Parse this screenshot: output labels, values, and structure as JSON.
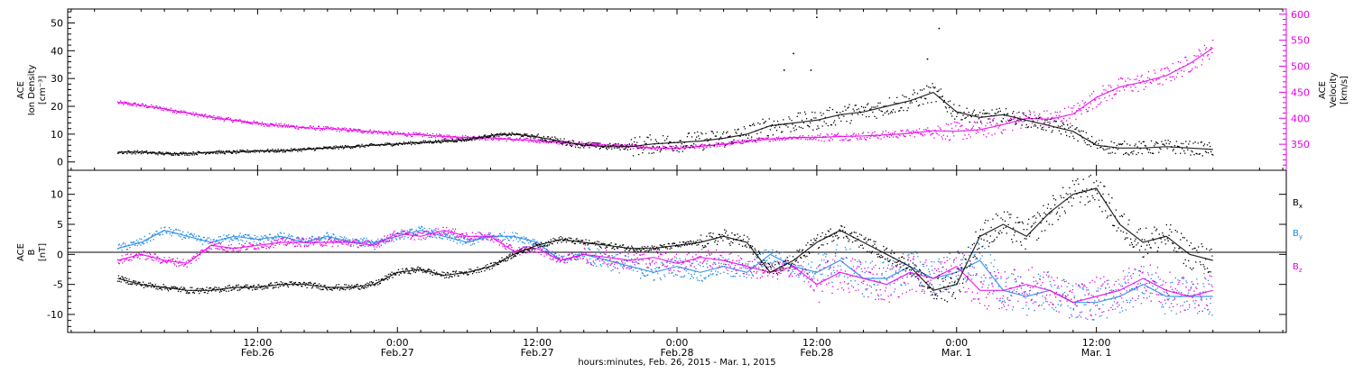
{
  "chart_data": [
    {
      "type": "scatter",
      "panel": "ion-density-velocity",
      "ylabel_lines": [
        "ACE",
        "Ion Density",
        "[cm⁻³]"
      ],
      "y2label_lines": [
        "ACE",
        "Velocity",
        "[km/s]"
      ],
      "ylim": [
        -3,
        55
      ],
      "y_ticks": [
        "0",
        "10",
        "20",
        "30",
        "40",
        "50"
      ],
      "y2lim": [
        300,
        610
      ],
      "y2_ticks": [
        "350",
        "400",
        "450",
        "500",
        "550",
        "600"
      ],
      "colors": {
        "density": "#000000",
        "velocity": "#e600e6"
      },
      "series": [
        {
          "key": "density",
          "axis": "left",
          "x": [
            0,
            2,
            4,
            6,
            8,
            10,
            12,
            14,
            16,
            18,
            20,
            22,
            24,
            26,
            28,
            30,
            32,
            34,
            36,
            38,
            40,
            42,
            44,
            46,
            48,
            50,
            52,
            54,
            56,
            58,
            60,
            62,
            64,
            66,
            68,
            70,
            72,
            74,
            76,
            78,
            80,
            82,
            84,
            86,
            88,
            90,
            92,
            94
          ],
          "values": [
            3.5,
            3.5,
            3.0,
            3.0,
            3.5,
            3.5,
            4.0,
            4.0,
            4.5,
            5.0,
            5.5,
            6.0,
            6.5,
            7.0,
            7.5,
            8.0,
            9.5,
            10.0,
            9.0,
            7.5,
            6.0,
            5.5,
            5.5,
            6.5,
            7.0,
            7.5,
            8.5,
            10.0,
            13.0,
            14.0,
            15.0,
            17.0,
            18.0,
            20.0,
            22.0,
            25.0,
            18.0,
            16.0,
            17.0,
            15.0,
            13.0,
            11.0,
            6.0,
            5.0,
            5.0,
            5.5,
            5.0,
            4.5
          ]
        },
        {
          "key": "velocity",
          "axis": "right",
          "x": [
            0,
            2,
            4,
            6,
            8,
            10,
            12,
            14,
            16,
            18,
            20,
            22,
            24,
            26,
            28,
            30,
            32,
            34,
            36,
            38,
            40,
            42,
            44,
            46,
            48,
            50,
            52,
            54,
            56,
            58,
            60,
            62,
            64,
            66,
            68,
            70,
            72,
            74,
            76,
            78,
            80,
            82,
            84,
            86,
            88,
            90,
            92,
            94
          ],
          "values": [
            430,
            425,
            418,
            410,
            402,
            396,
            390,
            386,
            382,
            380,
            377,
            374,
            370,
            368,
            365,
            363,
            362,
            359,
            357,
            353,
            351,
            348,
            346,
            343,
            342,
            346,
            350,
            356,
            360,
            363,
            363,
            365,
            366,
            368,
            371,
            376,
            375,
            378,
            388,
            400,
            398,
            408,
            440,
            460,
            470,
            482,
            505,
            535
          ]
        }
      ],
      "isolated_points": [
        {
          "x": 60.0,
          "y": 52
        },
        {
          "x": 58.0,
          "y": 39
        },
        {
          "x": 59.5,
          "y": 33
        },
        {
          "x": 57.2,
          "y": 33
        },
        {
          "x": 70.5,
          "y": 48
        },
        {
          "x": 69.5,
          "y": 37
        }
      ]
    },
    {
      "type": "scatter",
      "panel": "magnetic-field",
      "ylabel_lines": [
        "ACE",
        "B",
        "[nT]"
      ],
      "ylim": [
        -13,
        14
      ],
      "y_ticks": [
        "-10",
        "-5",
        "0",
        "5",
        "10"
      ],
      "zero_line": true,
      "colors": {
        "Bx": "#000000",
        "By": "#1e88e5",
        "Bz": "#e600e6"
      },
      "legend": [
        {
          "label": "Bx",
          "color": "#000000"
        },
        {
          "label": "By",
          "color": "#1e88e5"
        },
        {
          "label": "Bz",
          "color": "#e600e6"
        }
      ],
      "series": [
        {
          "key": "Bx",
          "x": [
            0,
            2,
            4,
            6,
            8,
            10,
            12,
            14,
            16,
            18,
            20,
            22,
            24,
            26,
            28,
            30,
            32,
            34,
            36,
            38,
            40,
            42,
            44,
            46,
            48,
            50,
            52,
            54,
            56,
            58,
            60,
            62,
            64,
            66,
            68,
            70,
            72,
            74,
            76,
            78,
            80,
            82,
            84,
            86,
            88,
            90,
            92,
            94
          ],
          "values": [
            -4,
            -5,
            -5.5,
            -6,
            -6,
            -5.5,
            -5.5,
            -5,
            -5,
            -5.5,
            -5.5,
            -5,
            -3,
            -2.5,
            -3.5,
            -3,
            -2,
            0,
            1.5,
            2.5,
            2,
            1.5,
            1,
            1,
            1.5,
            2,
            3,
            2,
            -3,
            -1,
            2,
            4,
            2,
            0,
            -2,
            -6,
            -5,
            3,
            5,
            3,
            7,
            10,
            11,
            5,
            2,
            3,
            0,
            -1
          ]
        },
        {
          "key": "By",
          "x": [
            0,
            2,
            4,
            6,
            8,
            10,
            12,
            14,
            16,
            18,
            20,
            22,
            24,
            26,
            28,
            30,
            32,
            34,
            36,
            38,
            40,
            42,
            44,
            46,
            48,
            50,
            52,
            54,
            56,
            58,
            60,
            62,
            64,
            66,
            68,
            70,
            72,
            74,
            76,
            78,
            80,
            82,
            84,
            86,
            88,
            90,
            92,
            94
          ],
          "values": [
            1,
            2,
            4,
            3,
            2,
            3,
            2.5,
            3,
            2,
            3,
            2,
            2,
            3,
            4,
            3,
            2,
            3,
            3,
            2,
            -1,
            0,
            -1,
            -2,
            -3,
            -2,
            -3,
            -2,
            -3,
            0,
            -2,
            -3,
            -1,
            -4,
            -4,
            -2,
            -4,
            -3,
            -1,
            -6,
            -7,
            -6,
            -8,
            -8,
            -7,
            -5,
            -7,
            -7,
            -7
          ]
        },
        {
          "key": "Bz",
          "x": [
            0,
            2,
            4,
            6,
            8,
            10,
            12,
            14,
            16,
            18,
            20,
            22,
            24,
            26,
            28,
            30,
            32,
            34,
            36,
            38,
            40,
            42,
            44,
            46,
            48,
            50,
            52,
            54,
            56,
            58,
            60,
            62,
            64,
            66,
            68,
            70,
            72,
            74,
            76,
            78,
            80,
            82,
            84,
            86,
            88,
            90,
            92,
            94
          ],
          "values": [
            -1,
            0,
            -1,
            -1.5,
            1.5,
            1,
            1.5,
            2,
            2,
            2,
            2,
            1.5,
            3.5,
            3,
            4,
            3,
            3,
            0.5,
            1,
            -1,
            0,
            -0.5,
            -1,
            -0.5,
            -1.5,
            -0.5,
            -1,
            -2,
            -3,
            -2,
            -5,
            -3,
            -4,
            -5,
            -3,
            -4,
            -2,
            -6,
            -6,
            -5,
            -6,
            -8,
            -7,
            -6,
            -4,
            -6,
            -7,
            -6
          ]
        }
      ]
    }
  ],
  "x_axis": {
    "tick_labels": [
      {
        "time": "12:00",
        "date": "Feb.26"
      },
      {
        "time": "0:00",
        "date": "Feb.27"
      },
      {
        "time": "12:00",
        "date": "Feb.27"
      },
      {
        "time": "0:00",
        "date": "Feb.28"
      },
      {
        "time": "12:00",
        "date": "Feb.28"
      },
      {
        "time": "0:00",
        "date": "Mar. 1"
      },
      {
        "time": "12:00",
        "date": "Mar. 1"
      }
    ],
    "tick_hours": [
      12,
      24,
      36,
      48,
      60,
      72,
      84
    ],
    "xlim_hours": [
      -4.3,
      100.3
    ],
    "label": "hours:minutes, Feb. 26, 2015 - Mar.  1, 2015"
  },
  "legend_labels": {
    "bx": "B",
    "bx_sub": "x",
    "by": "B",
    "by_sub": "y",
    "bz": "B",
    "bz_sub": "z"
  }
}
